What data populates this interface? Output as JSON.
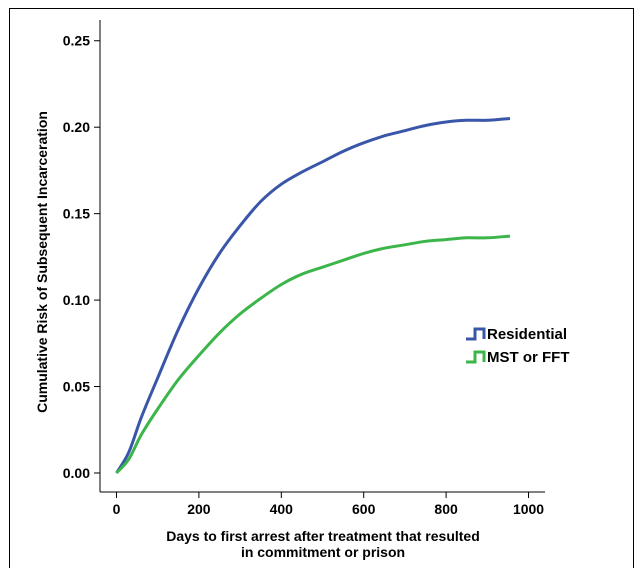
{
  "chart_data": {
    "type": "line",
    "xlabel": [
      "Days to first arrest after treatment that resulted",
      "in commitment or prison"
    ],
    "ylabel": "Cumulative Risk of Subsequent Incarceration",
    "xlim": [
      -40,
      1040
    ],
    "ylim": [
      -0.011,
      0.262
    ],
    "x_ticks": [
      0,
      200,
      400,
      600,
      800,
      1000
    ],
    "y_ticks": [
      0.0,
      0.05,
      0.1,
      0.15,
      0.2,
      0.25
    ],
    "x_tick_labels": [
      "0",
      "200",
      "400",
      "600",
      "800",
      "1000"
    ],
    "y_tick_labels": [
      "0.00",
      "0.05",
      "0.10",
      "0.15",
      "0.20",
      "0.25"
    ],
    "grid": false,
    "legend_position": "right",
    "series": [
      {
        "name": "Residential",
        "color": "#3a56a8",
        "x": [
          0,
          30,
          60,
          100,
          150,
          200,
          250,
          300,
          350,
          400,
          450,
          500,
          550,
          600,
          650,
          700,
          750,
          800,
          850,
          900,
          955
        ],
        "y": [
          0.0,
          0.012,
          0.032,
          0.055,
          0.083,
          0.107,
          0.127,
          0.143,
          0.157,
          0.167,
          0.174,
          0.18,
          0.186,
          0.191,
          0.195,
          0.198,
          0.201,
          0.203,
          0.204,
          0.204,
          0.205
        ]
      },
      {
        "name": "MST or FFT",
        "color": "#3cb54a",
        "x": [
          0,
          30,
          60,
          100,
          150,
          200,
          250,
          300,
          350,
          400,
          450,
          500,
          550,
          600,
          650,
          700,
          750,
          800,
          850,
          900,
          955
        ],
        "y": [
          0.0,
          0.008,
          0.022,
          0.037,
          0.054,
          0.068,
          0.081,
          0.092,
          0.101,
          0.109,
          0.115,
          0.119,
          0.123,
          0.127,
          0.13,
          0.132,
          0.134,
          0.135,
          0.136,
          0.136,
          0.137
        ]
      }
    ]
  }
}
